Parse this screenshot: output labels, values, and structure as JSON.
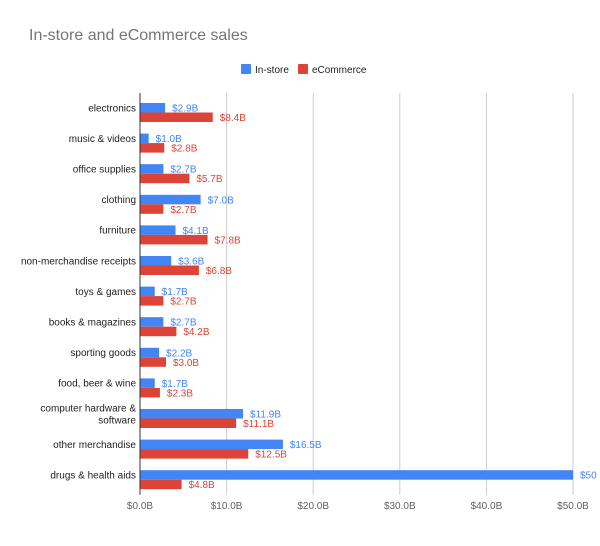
{
  "chart_data": {
    "type": "bar",
    "orientation": "horizontal",
    "title": "In-store and eCommerce sales",
    "categories": [
      [
        "electronics"
      ],
      [
        "music & videos"
      ],
      [
        "office supplies"
      ],
      [
        "clothing"
      ],
      [
        "furniture"
      ],
      [
        "non-merchandise receipts"
      ],
      [
        "toys & games"
      ],
      [
        "books & magazines"
      ],
      [
        "sporting goods"
      ],
      [
        "food, beer & wine"
      ],
      [
        "computer hardware &",
        "software"
      ],
      [
        "other merchandise"
      ],
      [
        "drugs & health aids"
      ]
    ],
    "series": [
      {
        "name": "In-store",
        "color": "#4285f4",
        "label_color": "#4285f4",
        "values": [
          2.9,
          1.0,
          2.7,
          7.0,
          4.1,
          3.6,
          1.7,
          2.7,
          2.2,
          1.7,
          11.9,
          16.5,
          50
        ],
        "labels": [
          "$2.9B",
          "$1.0B",
          "$2.7B",
          "$7.0B",
          "$4.1B",
          "$3.6B",
          "$1.7B",
          "$2.7B",
          "$2.2B",
          "$1.7B",
          "$11.9B",
          "$16.5B",
          "$50"
        ]
      },
      {
        "name": "eCommerce",
        "color": "#db4437",
        "label_color": "#db4437",
        "values": [
          8.4,
          2.8,
          5.7,
          2.7,
          7.8,
          6.8,
          2.7,
          4.2,
          3.0,
          2.3,
          11.1,
          12.5,
          4.8
        ],
        "labels": [
          "$8.4B",
          "$2.8B",
          "$5.7B",
          "$2.7B",
          "$7.8B",
          "$6.8B",
          "$2.7B",
          "$4.2B",
          "$3.0B",
          "$2.3B",
          "$11.1B",
          "$12.5B",
          "$4.8B"
        ]
      }
    ],
    "x_ticks": [
      0,
      10,
      20,
      30,
      40,
      50
    ],
    "x_tick_labels": [
      "$0.0B",
      "$10.0B",
      "$20.0B",
      "$30.0B",
      "$40.0B",
      "$50.0B"
    ],
    "xlim": [
      0,
      50
    ],
    "grid": "vertical",
    "legend": "top-center"
  }
}
